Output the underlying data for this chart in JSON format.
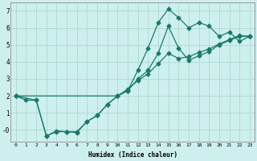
{
  "xlabel": "Humidex (Indice chaleur)",
  "bg_color": "#cdf0ee",
  "grid_color": "#b0d8d0",
  "line_color": "#1a7a6a",
  "xlim": [
    -0.5,
    23.5
  ],
  "ylim": [
    -0.7,
    7.5
  ],
  "xticks": [
    0,
    1,
    2,
    3,
    4,
    5,
    6,
    7,
    8,
    9,
    10,
    11,
    12,
    13,
    14,
    15,
    16,
    17,
    18,
    19,
    20,
    21,
    22,
    23
  ],
  "yticks": [
    0,
    1,
    2,
    3,
    4,
    5,
    6,
    7
  ],
  "ytick_labels": [
    "-0",
    "1",
    "2",
    "3",
    "4",
    "5",
    "6",
    "7"
  ],
  "line1_x": [
    0,
    1,
    2,
    3,
    4,
    5,
    6,
    7,
    8,
    9,
    10,
    11,
    12,
    13,
    14,
    15,
    16,
    17,
    18,
    19,
    20,
    21,
    22,
    23
  ],
  "line1_y": [
    2.0,
    1.75,
    1.75,
    -0.35,
    -0.05,
    -0.1,
    -0.1,
    0.5,
    0.85,
    1.5,
    2.0,
    2.3,
    3.5,
    4.8,
    6.3,
    7.1,
    6.6,
    6.0,
    6.3,
    6.1,
    5.5,
    5.75,
    5.2,
    5.5
  ],
  "line2_x": [
    0,
    10,
    11,
    12,
    13,
    14,
    15,
    16,
    17,
    18,
    19,
    20,
    21,
    22,
    23
  ],
  "line2_y": [
    2.0,
    2.0,
    2.4,
    2.9,
    3.3,
    3.9,
    4.5,
    4.2,
    4.3,
    4.55,
    4.75,
    5.05,
    5.3,
    5.55,
    5.5
  ],
  "line3_x": [
    0,
    2,
    3,
    4,
    5,
    6,
    7,
    8,
    9,
    10,
    11,
    12,
    13,
    14,
    15,
    16,
    17,
    18,
    19,
    20,
    21,
    22,
    23
  ],
  "line3_y": [
    2.0,
    1.75,
    -0.35,
    -0.1,
    -0.1,
    -0.15,
    0.5,
    0.85,
    1.5,
    2.0,
    2.3,
    3.0,
    3.5,
    4.5,
    6.1,
    4.8,
    4.1,
    4.35,
    4.6,
    5.0,
    5.25,
    5.5,
    5.5
  ]
}
